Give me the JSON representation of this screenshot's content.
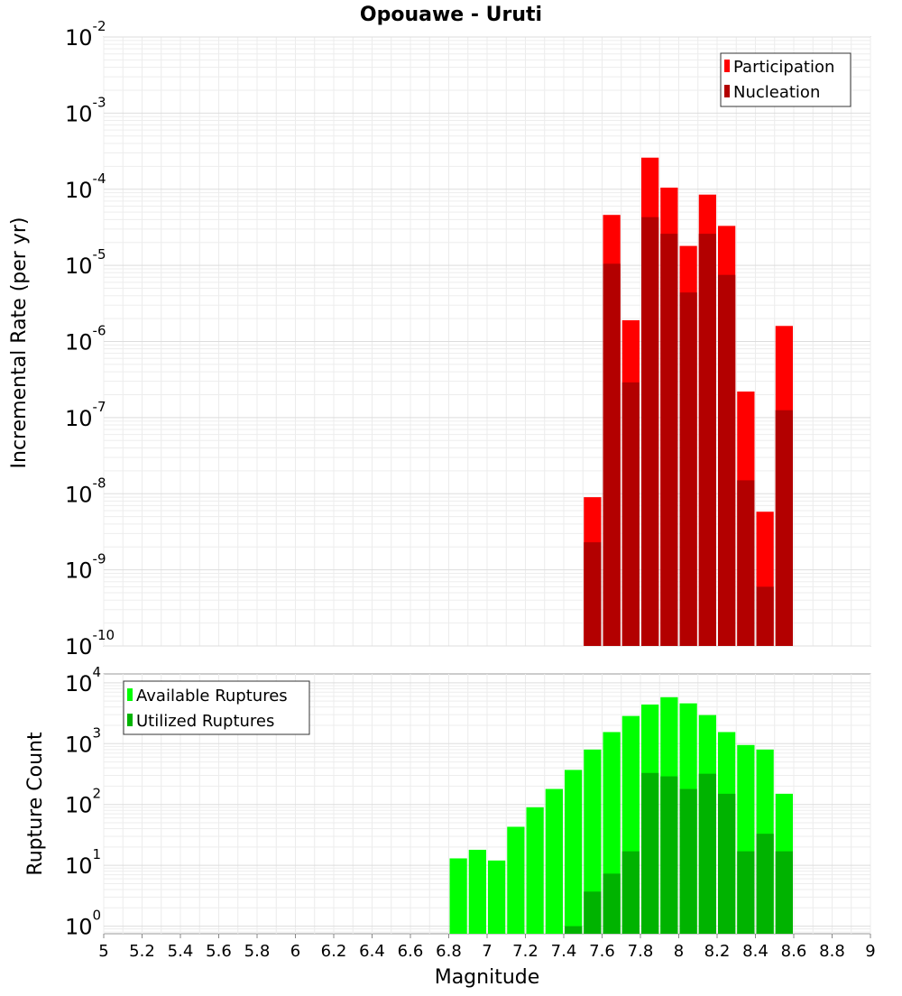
{
  "chart_data": [
    {
      "type": "bar",
      "title": "Opouawe - Uruti",
      "xlabel": "Magnitude",
      "ylabel": "Incremental Rate (per yr)",
      "yscale": "log",
      "ylim": [
        1e-10,
        0.01
      ],
      "xlim": [
        5,
        9
      ],
      "bin_width": 0.1,
      "grid": true,
      "legend_position": "top-right",
      "ytick_labels": [
        {
          "base": "10",
          "exp": "-2"
        },
        {
          "base": "10",
          "exp": "-3"
        },
        {
          "base": "10",
          "exp": "-4"
        },
        {
          "base": "10",
          "exp": "-5"
        },
        {
          "base": "10",
          "exp": "-6"
        },
        {
          "base": "10",
          "exp": "-7"
        },
        {
          "base": "10",
          "exp": "-8"
        },
        {
          "base": "10",
          "exp": "-9"
        },
        {
          "base": "10",
          "exp": "-10"
        }
      ],
      "x": [
        7.55,
        7.65,
        7.75,
        7.85,
        7.95,
        8.05,
        8.15,
        8.25,
        8.35,
        8.45,
        8.55
      ],
      "series": [
        {
          "name": "Participation",
          "color": "#ff0000",
          "values": [
            9e-09,
            4.6e-05,
            1.9e-06,
            0.00026,
            0.000105,
            1.8e-05,
            8.5e-05,
            3.3e-05,
            2.2e-07,
            5.8e-09,
            1.6e-06
          ]
        },
        {
          "name": "Nucleation",
          "color": "#b30000",
          "values": [
            2.3e-09,
            1.05e-05,
            2.9e-07,
            4.3e-05,
            2.6e-05,
            4.4e-06,
            2.6e-05,
            7.5e-06,
            1.5e-08,
            6e-10,
            1.25e-07
          ]
        }
      ]
    },
    {
      "type": "bar",
      "title": "",
      "xlabel": "Magnitude",
      "ylabel": "Rupture Count",
      "yscale": "log",
      "ylim": [
        0.75,
        14000
      ],
      "xlim": [
        5,
        9
      ],
      "bin_width": 0.1,
      "grid": true,
      "legend_position": "top-left",
      "ytick_labels": [
        {
          "base": "10",
          "exp": "4"
        },
        {
          "base": "10",
          "exp": "3"
        },
        {
          "base": "10",
          "exp": "2"
        },
        {
          "base": "10",
          "exp": "1"
        },
        {
          "base": "10",
          "exp": "0"
        }
      ],
      "x": [
        6.85,
        6.95,
        7.05,
        7.15,
        7.25,
        7.35,
        7.45,
        7.55,
        7.65,
        7.75,
        7.85,
        7.95,
        8.05,
        8.15,
        8.25,
        8.35,
        8.45,
        8.55
      ],
      "series": [
        {
          "name": "Available Ruptures",
          "color": "#00ff00",
          "values": [
            13,
            18,
            12,
            43,
            90,
            180,
            370,
            800,
            1550,
            2850,
            4400,
            5800,
            4600,
            2950,
            1550,
            950,
            800,
            150
          ]
        },
        {
          "name": "Utilized Ruptures",
          "color": "#00b300",
          "values": [
            0,
            0,
            0,
            0,
            0,
            0,
            1,
            3.7,
            7.3,
            17,
            330,
            290,
            180,
            320,
            150,
            17,
            33,
            17
          ]
        }
      ]
    }
  ],
  "x_ticks": [
    "5",
    "5.2",
    "5.4",
    "5.6",
    "5.8",
    "6",
    "6.2",
    "6.4",
    "6.6",
    "6.8",
    "7",
    "7.2",
    "7.4",
    "7.6",
    "7.8",
    "8",
    "8.2",
    "8.4",
    "8.6",
    "8.8",
    "9"
  ]
}
